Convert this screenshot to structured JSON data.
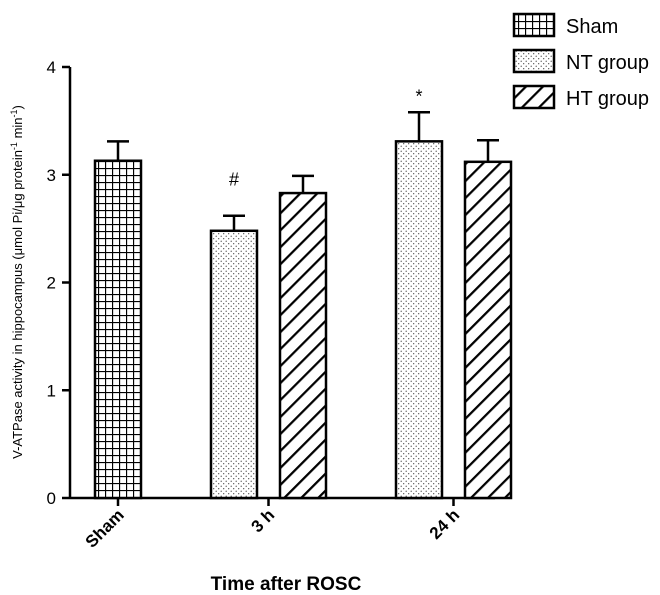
{
  "chart_data": {
    "type": "bar",
    "title": "",
    "xlabel": "Time after ROSC",
    "ylabel": "V-ATPase activity in hippocampus (μmol Pi/μg protein",
    "ylabel_sup1": "-1",
    "ylabel_mid": " min",
    "ylabel_sup2": "-1",
    "ylabel_end": ")",
    "ylim": [
      0,
      4
    ],
    "yticks": [
      "0",
      "1",
      "2",
      "3",
      "4"
    ],
    "grid": false,
    "legend_position": "top-right",
    "categories": [
      "Sham",
      "3 h",
      "24 h"
    ],
    "series": [
      {
        "name": "Sham",
        "pattern": "grid",
        "values": [
          3.13,
          null,
          null
        ],
        "errors": [
          0.18,
          null,
          null
        ]
      },
      {
        "name": "NT group",
        "pattern": "dots",
        "values": [
          null,
          2.48,
          3.31
        ],
        "errors": [
          null,
          0.14,
          0.27
        ]
      },
      {
        "name": "HT group",
        "pattern": "hatch",
        "values": [
          null,
          2.83,
          3.12
        ],
        "errors": [
          null,
          0.16,
          0.2
        ]
      }
    ],
    "annotations": [
      {
        "text": "#",
        "category": "3 h",
        "series": "NT group"
      },
      {
        "text": "*",
        "category": "24 h",
        "series": "NT group"
      }
    ]
  }
}
